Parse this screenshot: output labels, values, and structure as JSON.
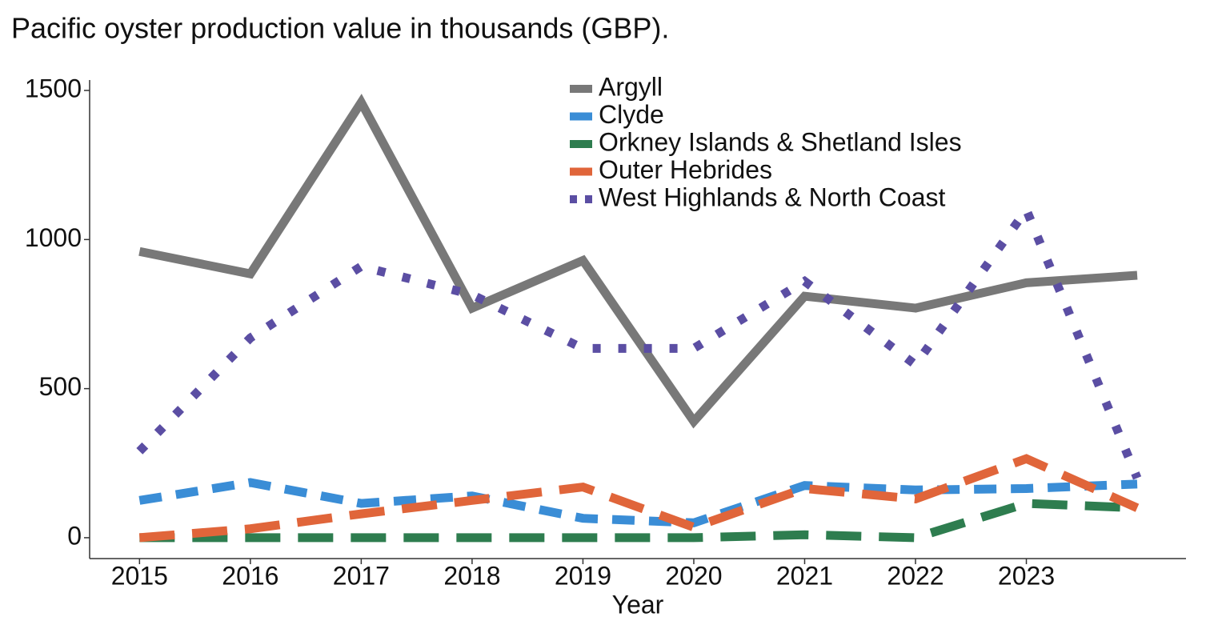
{
  "chart_data": {
    "type": "line",
    "title": "Pacific oyster production value in thousands (GBP).",
    "x_label": "Year",
    "x": [
      2015,
      2016,
      2017,
      2018,
      2019,
      2020,
      2021,
      2022,
      2023,
      2024
    ],
    "xlim": [
      2014.55,
      2024.44
    ],
    "xticks": [
      2015,
      2016,
      2017,
      2018,
      2019,
      2020,
      2021,
      2022,
      2023
    ],
    "ylim": [
      -70,
      1535
    ],
    "yticks": [
      0,
      500,
      1000,
      1500
    ],
    "legend": "top",
    "series": [
      {
        "name": "Argyll",
        "color": "#787878",
        "dash": "solid",
        "values": [
          960,
          885,
          1460,
          770,
          930,
          390,
          810,
          770,
          855,
          880
        ]
      },
      {
        "name": "Clyde",
        "color": "#3a8dd6",
        "dash": "dashed",
        "values": [
          125,
          185,
          115,
          140,
          65,
          50,
          175,
          160,
          165,
          180
        ]
      },
      {
        "name": "Orkney Islands & Shetland Isles",
        "color": "#2e7d4f",
        "dash": "longdash",
        "values": [
          0,
          0,
          0,
          0,
          0,
          0,
          10,
          0,
          115,
          100
        ]
      },
      {
        "name": "Outer Hebrides",
        "color": "#e0653a",
        "dash": "longdash",
        "values": [
          0,
          30,
          80,
          125,
          170,
          35,
          165,
          130,
          265,
          100
        ]
      },
      {
        "name": "West Highlands & North Coast",
        "color": "#5b4ea3",
        "dash": "dotted",
        "values": [
          290,
          670,
          910,
          815,
          635,
          635,
          860,
          580,
          1100,
          200
        ]
      }
    ]
  }
}
